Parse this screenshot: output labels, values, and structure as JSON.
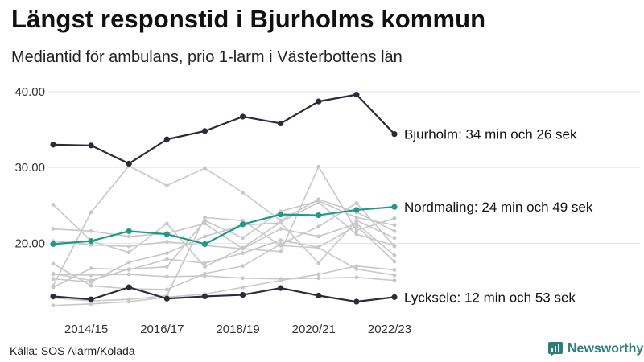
{
  "header": {
    "title": "Längst responstid i Bjurholms kommun",
    "subtitle": "Mediantid för ambulans, prio 1-larm i Västerbottens län"
  },
  "footer": {
    "source": "Källa: SOS Alarm/Kolada",
    "brand": "Newsworthy"
  },
  "colors": {
    "highlight_dark": "#2b2b3b",
    "highlight_teal": "#1f9a8a",
    "background_lines": "#c8c8c8",
    "brand": "#2a7f79"
  },
  "chart_data": {
    "type": "line",
    "title": "Längst responstid i Bjurholms kommun",
    "subtitle": "Mediantid för ambulans, prio 1-larm i Västerbottens län",
    "xlabel": "",
    "ylabel": "",
    "x": [
      2014,
      2015,
      2016,
      2017,
      2018,
      2019,
      2020,
      2021,
      2022,
      2023
    ],
    "x_tick_labels": [
      {
        "x": 2015,
        "label": "2014/15"
      },
      {
        "x": 2017,
        "label": "2016/17"
      },
      {
        "x": 2019,
        "label": "2018/19"
      },
      {
        "x": 2021,
        "label": "2020/21"
      },
      {
        "x": 2023,
        "label": "2022/23"
      }
    ],
    "y_ticks": [
      {
        "value": 20,
        "label": "20.00"
      },
      {
        "value": 30,
        "label": "30.00"
      },
      {
        "value": 40,
        "label": "40.00"
      }
    ],
    "ylim": [
      10.5,
      42
    ],
    "grid": true,
    "highlighted_series": [
      {
        "name": "Bjurholm",
        "label": "Bjurholm: 34 min och 26 sek",
        "color": "#2b2b3b",
        "values": [
          33.0,
          32.9,
          30.5,
          33.7,
          34.8,
          36.7,
          35.8,
          38.7,
          39.6,
          34.4
        ]
      },
      {
        "name": "Nordmaling",
        "label": "Nordmaling: 24 min och 49 sek",
        "color": "#1f9a8a",
        "values": [
          19.9,
          20.3,
          21.6,
          21.2,
          19.9,
          22.5,
          23.8,
          23.7,
          24.4,
          24.8
        ]
      },
      {
        "name": "Lycksele",
        "label": "Lycksele: 12 min och 53 sek",
        "color": "#2b2b3b",
        "values": [
          13.0,
          12.6,
          14.2,
          12.7,
          13.0,
          13.2,
          14.1,
          13.1,
          12.3,
          12.9
        ]
      }
    ],
    "background_series": [
      {
        "values": [
          25.1,
          20.3,
          18.8,
          22.6,
          16.9,
          19.4,
          22.8,
          25.4,
          21.2,
          19.7
        ]
      },
      {
        "values": [
          14.4,
          24.1,
          30.2,
          27.6,
          29.9,
          26.7,
          23.0,
          25.8,
          24.1,
          21.6
        ]
      },
      {
        "values": [
          16.0,
          15.1,
          16.6,
          16.9,
          23.0,
          20.7,
          24.2,
          25.6,
          23.4,
          22.4
        ]
      },
      {
        "values": [
          21.9,
          21.6,
          20.9,
          21.3,
          22.6,
          19.3,
          18.9,
          30.1,
          21.7,
          23.3
        ]
      },
      {
        "values": [
          14.2,
          16.7,
          16.5,
          17.9,
          17.4,
          18.7,
          20.4,
          19.5,
          22.3,
          17.6
        ]
      },
      {
        "values": [
          15.3,
          14.9,
          17.5,
          18.7,
          20.9,
          22.4,
          22.7,
          17.4,
          23.0,
          20.7
        ]
      },
      {
        "values": [
          17.3,
          14.4,
          14.0,
          13.9,
          16.0,
          17.0,
          19.9,
          22.2,
          25.3,
          19.6
        ]
      },
      {
        "values": [
          12.8,
          12.4,
          12.6,
          13.1,
          23.4,
          23.0,
          19.7,
          19.4,
          16.6,
          15.8
        ]
      },
      {
        "values": [
          11.8,
          12.0,
          12.3,
          12.9,
          13.3,
          14.2,
          15.1,
          15.9,
          17.0,
          16.5
        ]
      },
      {
        "values": [
          15.9,
          15.8,
          15.9,
          15.6,
          15.7,
          15.4,
          15.3,
          15.4,
          15.5,
          15.1
        ]
      },
      {
        "values": [
          20.3,
          19.8,
          19.6,
          20.2,
          19.7,
          19.3,
          21.9,
          20.9,
          22.6,
          18.4
        ]
      }
    ]
  }
}
